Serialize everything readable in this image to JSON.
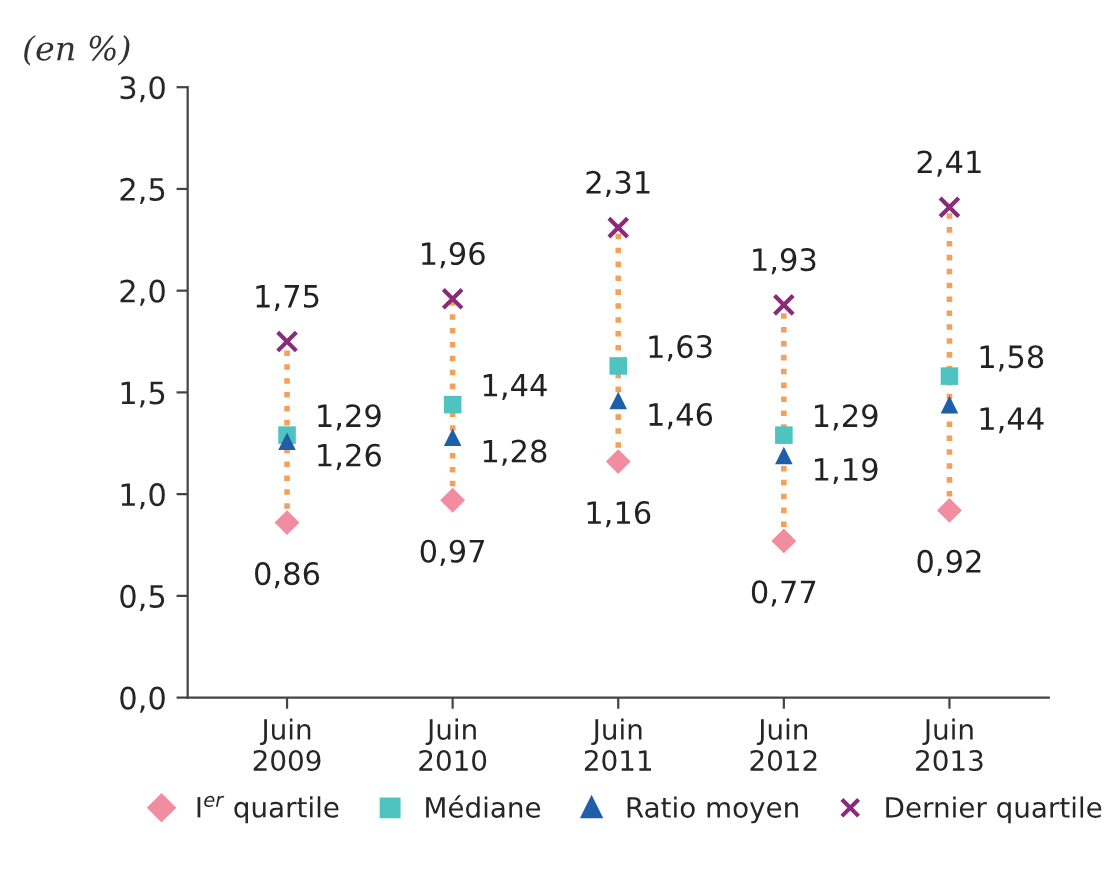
{
  "chart_data": {
    "type": "scatter",
    "ylabel": "(en %)",
    "categories": [
      "Juin\n2009",
      "Juin\n2010",
      "Juin\n2011",
      "Juin\n2012",
      "Juin\n2013"
    ],
    "series": [
      {
        "name": "I$^{er}$ quartile",
        "color": "#f28ca0",
        "marker": "diamond",
        "values": [
          0.86,
          0.97,
          1.16,
          0.77,
          0.92
        ],
        "value_labels": [
          "0,86",
          "0,97",
          "1,16",
          "0,77",
          "0,92"
        ]
      },
      {
        "name": "Médiane",
        "color": "#4fc3c0",
        "marker": "square",
        "values": [
          1.29,
          1.44,
          1.63,
          1.29,
          1.58
        ],
        "value_labels": [
          "1,29",
          "1,44",
          "1,63",
          "1,29",
          "1,58"
        ]
      },
      {
        "name": "Ratio moyen",
        "color": "#1f5fa8",
        "marker": "triangle",
        "values": [
          1.26,
          1.28,
          1.46,
          1.19,
          1.44
        ],
        "value_labels": [
          "1,26",
          "1,28",
          "1,46",
          "1,19",
          "1,44"
        ]
      },
      {
        "name": "Dernier quartile",
        "color": "#8b2a7a",
        "marker": "cross",
        "values": [
          1.75,
          1.96,
          2.31,
          1.93,
          2.41
        ],
        "value_labels": [
          "1,75",
          "1,96",
          "2,31",
          "1,93",
          "2,41"
        ]
      }
    ],
    "ylim": [
      0,
      3
    ],
    "yticks": [
      {
        "value": 0,
        "label": "0,0"
      },
      {
        "value": 0.5,
        "label": "0,5"
      },
      {
        "value": 1,
        "label": "1,0"
      },
      {
        "value": 1.5,
        "label": "1,5"
      },
      {
        "value": 2,
        "label": "2,0"
      },
      {
        "value": 2.5,
        "label": "2,5"
      },
      {
        "value": 3,
        "label": "3,0"
      }
    ],
    "grid": false,
    "legend": "bottom"
  }
}
